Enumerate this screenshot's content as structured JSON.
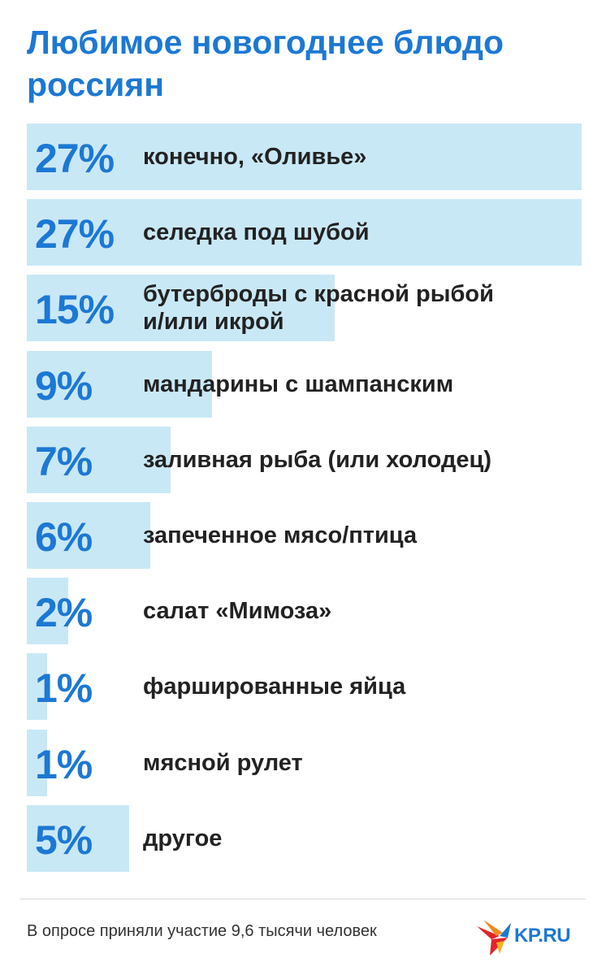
{
  "title": "Любимое новогоднее блюдо россиян",
  "colors": {
    "accent": "#1c78d4",
    "bar": "#c9e8f6",
    "text": "#222222",
    "logo_red": "#e5232b"
  },
  "chart_data": {
    "type": "bar",
    "orientation": "horizontal",
    "title": "Любимое новогоднее блюдо россиян",
    "xlim": [
      0,
      27
    ],
    "categories": [
      "конечно, «Оливье»",
      "селедка под шубой",
      "бутерброды с красной рыбой и/или икрой",
      "мандарины с шампанским",
      "заливная рыба (или холодец)",
      "запеченное мясо/птица",
      "салат «Мимоза»",
      "фаршированные яйца",
      "мясной рулет",
      "другое"
    ],
    "values": [
      27,
      27,
      15,
      9,
      7,
      6,
      2,
      1,
      1,
      5
    ],
    "value_labels": [
      "27%",
      "27%",
      "15%",
      "9%",
      "7%",
      "6%",
      "2%",
      "1%",
      "1%",
      "5%"
    ],
    "label_lines": [
      [
        "конечно, «Оливье»"
      ],
      [
        "селедка под шубой"
      ],
      [
        "бутерброды с красной рыбой",
        "и/или икрой"
      ],
      [
        "мандарины с шампанским"
      ],
      [
        "заливная рыба (или холодец)"
      ],
      [
        "запеченное мясо/птица"
      ],
      [
        "салат «Мимоза»"
      ],
      [
        "фаршированные яйца"
      ],
      [
        "мясной рулет"
      ],
      [
        "другое"
      ]
    ]
  },
  "footer": {
    "note": "В опросе приняли участие 9,6 тысячи человек",
    "logo_text": "KP.RU",
    "logo_icon": "kp-bird-logo-icon"
  }
}
